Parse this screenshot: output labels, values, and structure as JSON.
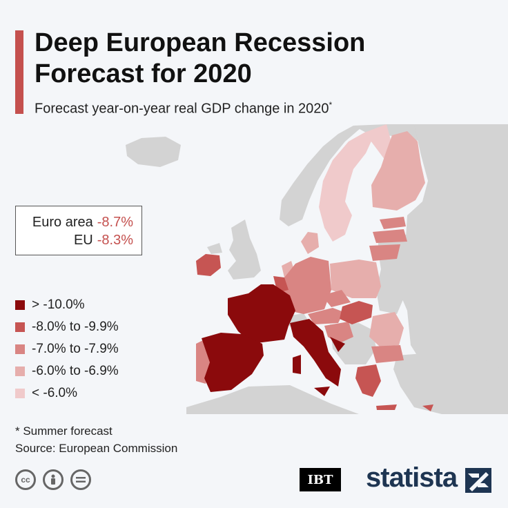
{
  "header": {
    "title": "Deep European Recession Forecast for 2020",
    "subtitle": "Forecast year-on-year real GDP change in 2020",
    "subtitle_note": "*"
  },
  "summary": [
    {
      "label": "Euro area",
      "value": "-8.7%"
    },
    {
      "label": "EU",
      "value": "-8.3%"
    }
  ],
  "legend": [
    {
      "label": "> -10.0%",
      "color": "#8b0a0c"
    },
    {
      "label": "-8.0% to -9.9%",
      "color": "#c65553"
    },
    {
      "label": "-7.0% to -7.9%",
      "color": "#d98583"
    },
    {
      "label": "-6.0% to -6.9%",
      "color": "#e6aeac"
    },
    {
      "label": "< -6.0%",
      "color": "#f0cacb"
    }
  ],
  "colors": {
    "accent": "#c4504e",
    "non_eu": "#d3d3d3",
    "sea": "#f4f6f9"
  },
  "footnote": {
    "note": "* Summer forecast",
    "source": "Source: European Commission"
  },
  "branding": {
    "ibt": "IBT",
    "statista": "statista"
  }
}
